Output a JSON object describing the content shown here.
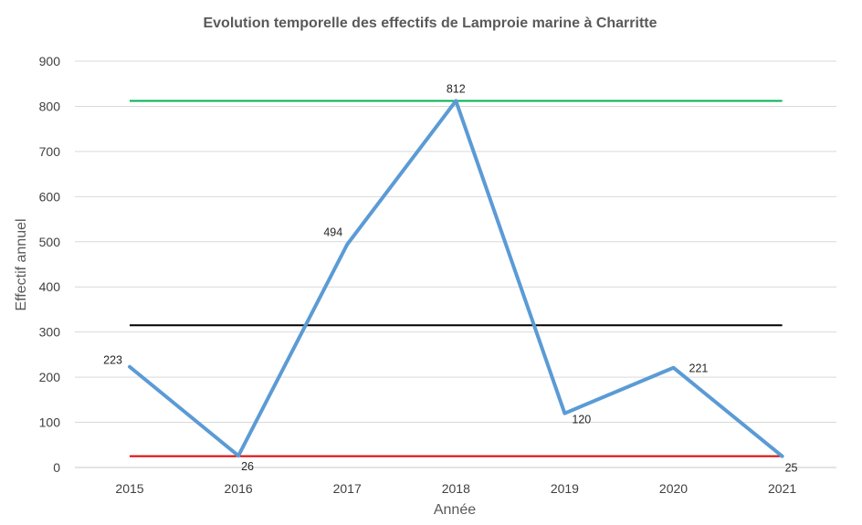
{
  "chart_data": {
    "type": "line",
    "title": "Evolution temporelle des effectifs de Lamproie marine à Charritte",
    "xlabel": "Année",
    "ylabel": "Effectif annuel",
    "categories": [
      "2015",
      "2016",
      "2017",
      "2018",
      "2019",
      "2020",
      "2021"
    ],
    "y_ticks": [
      "0",
      "100",
      "200",
      "300",
      "400",
      "500",
      "600",
      "700",
      "800",
      "900"
    ],
    "ylim": [
      0,
      900
    ],
    "grid": true,
    "series": [
      {
        "values": [
          223,
          26,
          494,
          812,
          120,
          221,
          25
        ],
        "data_labels": [
          "223",
          "26",
          "494",
          "812",
          "120",
          "221",
          "25"
        ],
        "color": "#5B9BD5"
      }
    ],
    "reference_lines": [
      {
        "value": 812,
        "color": "#00B050"
      },
      {
        "value": 315,
        "color": "#000000"
      },
      {
        "value": 25,
        "color": "#E00000"
      }
    ]
  }
}
